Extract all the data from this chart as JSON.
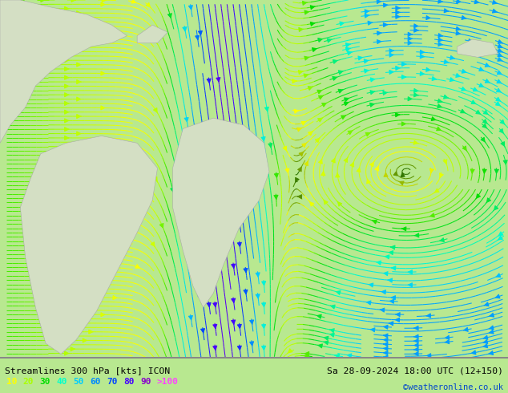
{
  "title_left": "Streamlines 300 hPa [kts] ICON",
  "title_right": "Sa 28-09-2024 18:00 UTC (12+150)",
  "credit": "©weatheronline.co.uk",
  "legend_values": [
    "10",
    "20",
    "30",
    "40",
    "50",
    "60",
    "70",
    "80",
    "90",
    ">100"
  ],
  "legend_colors": [
    "#ffff00",
    "#aaff00",
    "#00dd00",
    "#00ffcc",
    "#00ccff",
    "#0088ff",
    "#0044ff",
    "#4400ff",
    "#8800cc",
    "#ff44ff"
  ],
  "bg_color": "#b8e890",
  "land_color": "#d4dfc4",
  "land_edge": "#aaaaaa",
  "text_color": "#000000",
  "fig_width": 6.34,
  "fig_height": 4.9,
  "dpi": 100,
  "speed_max": 130,
  "cmap_nodes": [
    [
      0.0,
      "#005500"
    ],
    [
      0.08,
      "#ffff00"
    ],
    [
      0.16,
      "#aaff00"
    ],
    [
      0.24,
      "#00dd00"
    ],
    [
      0.38,
      "#00ffcc"
    ],
    [
      0.5,
      "#00ccff"
    ],
    [
      0.6,
      "#0088ff"
    ],
    [
      0.7,
      "#0044ff"
    ],
    [
      0.8,
      "#4400ff"
    ],
    [
      0.9,
      "#8800cc"
    ],
    [
      1.0,
      "#ff44ff"
    ]
  ]
}
